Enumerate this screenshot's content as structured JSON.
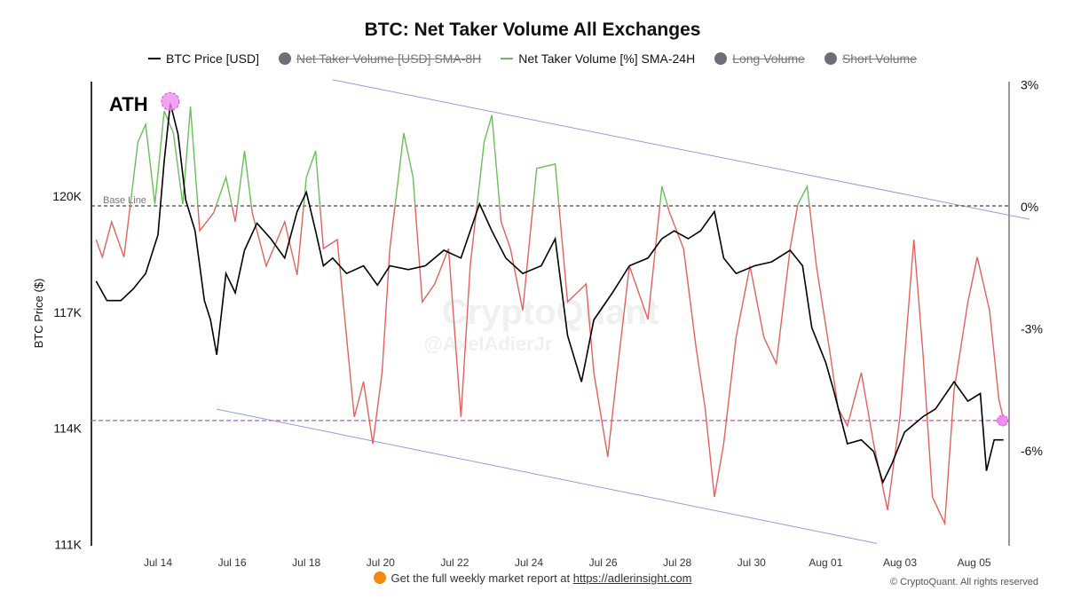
{
  "chart_data": {
    "type": "line",
    "title": "BTC: Net Taker Volume All Exchanges",
    "legend": [
      {
        "name": "BTC Price [USD]",
        "color": "#000000",
        "visible": true,
        "marker": "line"
      },
      {
        "name": "Net Taker Volume [USD] SMA-8H",
        "color": "#6e6e78",
        "visible": false,
        "marker": "dot"
      },
      {
        "name": "Net Taker Volume [%] SMA-24H",
        "color": "#6abf5a",
        "visible": true,
        "marker": "line"
      },
      {
        "name": "Long Volume",
        "color": "#6e6e78",
        "visible": false,
        "marker": "dot"
      },
      {
        "name": "Short Volume",
        "color": "#6e6e78",
        "visible": false,
        "marker": "dot"
      }
    ],
    "legend_placement": "top",
    "ylabel": "BTC Price ($)",
    "y_left_ticks": [
      "111K",
      "114K",
      "117K",
      "120K"
    ],
    "y_left_range_k": [
      111,
      123
    ],
    "y_right_ticks": [
      "3%",
      "0%",
      "-3%",
      "-6%"
    ],
    "y_right_range_pct": [
      -8.35,
      3.1
    ],
    "x_ticks": [
      "Jul 14",
      "Jul 16",
      "Jul 18",
      "Jul 20",
      "Jul 22",
      "Jul 24",
      "Jul 26",
      "Jul 28",
      "Jul 30",
      "Aug 01",
      "Aug 03",
      "Aug 05"
    ],
    "grid": false,
    "colors": {
      "price": "#000000",
      "positive": "#6abf5a",
      "negative": "#e0635c",
      "trend": "#8f9be0",
      "support": "#e040e0",
      "marker": "#f08cf0"
    },
    "annotations": {
      "ath_label": "ATH",
      "ath_point": {
        "x": "07-14 08:00",
        "price_k": 122.4
      },
      "baseline_label": "Base Line",
      "baseline_pct": 0,
      "support_price_k": 114.2,
      "upper_trend": [
        {
          "x": "07-18 17:00",
          "pct": 3.1
        },
        {
          "x": "08-06 12:00",
          "pct": -0.33
        }
      ],
      "lower_trend": [
        {
          "x": "07-15 14:00",
          "pct": -5.0
        },
        {
          "x": "08-02 09:00",
          "pct": -8.3
        }
      ]
    },
    "series": [
      {
        "name": "BTC Price [USD]",
        "unit": "K USD",
        "points": [
          [
            "07-12 08:00",
            117.8
          ],
          [
            "07-12 15:00",
            117.3
          ],
          [
            "07-13 00:00",
            117.3
          ],
          [
            "07-13 08:00",
            117.6
          ],
          [
            "07-13 16:00",
            118.0
          ],
          [
            "07-14 00:00",
            119.0
          ],
          [
            "07-14 04:00",
            120.9
          ],
          [
            "07-14 08:00",
            122.4
          ],
          [
            "07-14 13:00",
            121.6
          ],
          [
            "07-14 18:00",
            119.9
          ],
          [
            "07-15 00:00",
            119.1
          ],
          [
            "07-15 06:00",
            117.3
          ],
          [
            "07-15 10:00",
            116.8
          ],
          [
            "07-15 14:00",
            115.9
          ],
          [
            "07-15 20:00",
            118.0
          ],
          [
            "07-16 02:00",
            117.5
          ],
          [
            "07-16 08:00",
            118.6
          ],
          [
            "07-16 16:00",
            119.3
          ],
          [
            "07-17 01:00",
            118.9
          ],
          [
            "07-17 10:00",
            118.4
          ],
          [
            "07-17 18:00",
            119.6
          ],
          [
            "07-18 00:00",
            120.1
          ],
          [
            "07-18 06:00",
            119.1
          ],
          [
            "07-18 11:00",
            118.2
          ],
          [
            "07-18 17:00",
            118.4
          ],
          [
            "07-19 02:00",
            118.0
          ],
          [
            "07-19 13:00",
            118.2
          ],
          [
            "07-19 22:00",
            117.7
          ],
          [
            "07-20 06:00",
            118.2
          ],
          [
            "07-20 18:00",
            118.1
          ],
          [
            "07-21 05:00",
            118.2
          ],
          [
            "07-21 17:00",
            118.6
          ],
          [
            "07-22 04:00",
            118.4
          ],
          [
            "07-22 16:00",
            119.8
          ],
          [
            "07-23 00:00",
            119.1
          ],
          [
            "07-23 09:00",
            118.4
          ],
          [
            "07-23 20:00",
            118.0
          ],
          [
            "07-24 08:00",
            118.2
          ],
          [
            "07-24 17:00",
            118.9
          ],
          [
            "07-25 01:00",
            116.4
          ],
          [
            "07-25 10:00",
            115.2
          ],
          [
            "07-25 18:00",
            116.8
          ],
          [
            "07-26 06:00",
            117.5
          ],
          [
            "07-26 17:00",
            118.2
          ],
          [
            "07-27 05:00",
            118.4
          ],
          [
            "07-27 14:00",
            118.9
          ],
          [
            "07-27 22:00",
            119.1
          ],
          [
            "07-28 07:00",
            118.9
          ],
          [
            "07-28 15:00",
            119.1
          ],
          [
            "07-29 00:00",
            119.6
          ],
          [
            "07-29 06:00",
            118.4
          ],
          [
            "07-29 14:00",
            118.0
          ],
          [
            "07-30 02:00",
            118.2
          ],
          [
            "07-30 13:00",
            118.3
          ],
          [
            "07-31 01:00",
            118.6
          ],
          [
            "07-31 09:00",
            118.2
          ],
          [
            "07-31 15:00",
            116.6
          ],
          [
            "08-01 00:00",
            115.7
          ],
          [
            "08-01 05:00",
            115.0
          ],
          [
            "08-01 14:00",
            113.6
          ],
          [
            "08-01 23:00",
            113.7
          ],
          [
            "08-02 07:00",
            113.4
          ],
          [
            "08-02 13:00",
            112.6
          ],
          [
            "08-02 19:00",
            113.1
          ],
          [
            "08-03 03:00",
            113.9
          ],
          [
            "08-03 15:00",
            114.3
          ],
          [
            "08-03 23:00",
            114.5
          ],
          [
            "08-04 11:00",
            115.2
          ],
          [
            "08-04 20:00",
            114.7
          ],
          [
            "08-05 04:00",
            114.9
          ],
          [
            "08-05 08:00",
            112.9
          ],
          [
            "08-05 13:00",
            113.7
          ],
          [
            "08-05 19:00",
            113.7
          ]
        ]
      },
      {
        "name": "Net Taker Volume [%] SMA-24H",
        "unit": "%",
        "points": [
          [
            "07-12 08:00",
            -0.83
          ],
          [
            "07-12 12:00",
            -1.26
          ],
          [
            "07-12 18:00",
            -0.39
          ],
          [
            "07-13 02:00",
            -1.26
          ],
          [
            "07-13 11:00",
            1.57
          ],
          [
            "07-13 16:00",
            2.0
          ],
          [
            "07-13 22:00",
            0.04
          ],
          [
            "07-14 04:00",
            2.33
          ],
          [
            "07-14 10:00",
            1.79
          ],
          [
            "07-14 16:00",
            0.04
          ],
          [
            "07-14 21:00",
            2.44
          ],
          [
            "07-15 03:00",
            -0.61
          ],
          [
            "07-15 12:00",
            -0.17
          ],
          [
            "07-15 20:00",
            0.7
          ],
          [
            "07-16 02:00",
            -0.39
          ],
          [
            "07-16 08:00",
            1.35
          ],
          [
            "07-16 13:00",
            -0.17
          ],
          [
            "07-16 22:00",
            -1.48
          ],
          [
            "07-17 10:00",
            -0.39
          ],
          [
            "07-17 18:00",
            -1.7
          ],
          [
            "07-18 00:00",
            0.7
          ],
          [
            "07-18 06:00",
            1.35
          ],
          [
            "07-18 11:00",
            -1.05
          ],
          [
            "07-18 20:00",
            -0.83
          ],
          [
            "07-19 02:00",
            -3.23
          ],
          [
            "07-19 07:00",
            -5.19
          ],
          [
            "07-19 13:00",
            -4.32
          ],
          [
            "07-19 19:00",
            -5.85
          ],
          [
            "07-20 01:00",
            -4.1
          ],
          [
            "07-20 06:00",
            -1.05
          ],
          [
            "07-20 15:00",
            1.79
          ],
          [
            "07-20 21:00",
            0.7
          ],
          [
            "07-21 03:00",
            -2.36
          ],
          [
            "07-21 11:00",
            -1.92
          ],
          [
            "07-21 20:00",
            -1.05
          ],
          [
            "07-22 04:00",
            -5.19
          ],
          [
            "07-22 10:00",
            -1.48
          ],
          [
            "07-22 19:00",
            1.57
          ],
          [
            "07-23 00:00",
            2.23
          ],
          [
            "07-23 06:00",
            -0.39
          ],
          [
            "07-23 12:00",
            -1.05
          ],
          [
            "07-23 20:00",
            -2.57
          ],
          [
            "07-24 05:00",
            0.92
          ],
          [
            "07-24 17:00",
            1.03
          ],
          [
            "07-25 01:00",
            -2.36
          ],
          [
            "07-25 13:00",
            -1.92
          ],
          [
            "07-25 18:00",
            -4.1
          ],
          [
            "07-26 03:00",
            -6.17
          ],
          [
            "07-26 09:00",
            -4.1
          ],
          [
            "07-26 17:00",
            -1.48
          ],
          [
            "07-27 05:00",
            -2.79
          ],
          [
            "07-27 14:00",
            0.48
          ],
          [
            "07-27 19:00",
            -0.17
          ],
          [
            "07-28 04:00",
            -1.05
          ],
          [
            "07-28 12:00",
            -3.45
          ],
          [
            "07-28 18:00",
            -4.97
          ],
          [
            "07-29 00:00",
            -7.16
          ],
          [
            "07-29 06:00",
            -5.85
          ],
          [
            "07-29 14:00",
            -3.23
          ],
          [
            "07-29 23:00",
            -1.48
          ],
          [
            "07-30 08:00",
            -3.23
          ],
          [
            "07-30 16:00",
            -3.88
          ],
          [
            "07-31 01:00",
            -1.05
          ],
          [
            "07-31 06:00",
            0.04
          ],
          [
            "07-31 12:00",
            0.48
          ],
          [
            "07-31 18:00",
            -1.48
          ],
          [
            "08-01 03:00",
            -3.67
          ],
          [
            "08-01 08:00",
            -4.97
          ],
          [
            "08-01 14:00",
            -5.41
          ],
          [
            "08-01 23:00",
            -4.1
          ],
          [
            "08-02 07:00",
            -5.85
          ],
          [
            "08-02 16:00",
            -7.48
          ],
          [
            "08-03 00:00",
            -5.19
          ],
          [
            "08-03 09:00",
            -0.83
          ],
          [
            "08-03 15:00",
            -3.67
          ],
          [
            "08-03 21:00",
            -7.16
          ],
          [
            "08-04 05:00",
            -7.81
          ],
          [
            "08-04 11:00",
            -4.54
          ],
          [
            "08-04 20:00",
            -2.36
          ],
          [
            "08-05 02:00",
            -1.26
          ],
          [
            "08-05 10:00",
            -2.57
          ],
          [
            "08-05 16:00",
            -4.76
          ],
          [
            "08-05 20:00",
            -5.41
          ]
        ]
      }
    ]
  },
  "watermark": {
    "brand": "CryptoQuant",
    "handle": "@AxelAdierJr"
  },
  "footer": {
    "text": "Get the full weekly market report at ",
    "link": "https://adlerinsight.com",
    "copyright": "© CryptoQuant. All rights reserved"
  }
}
